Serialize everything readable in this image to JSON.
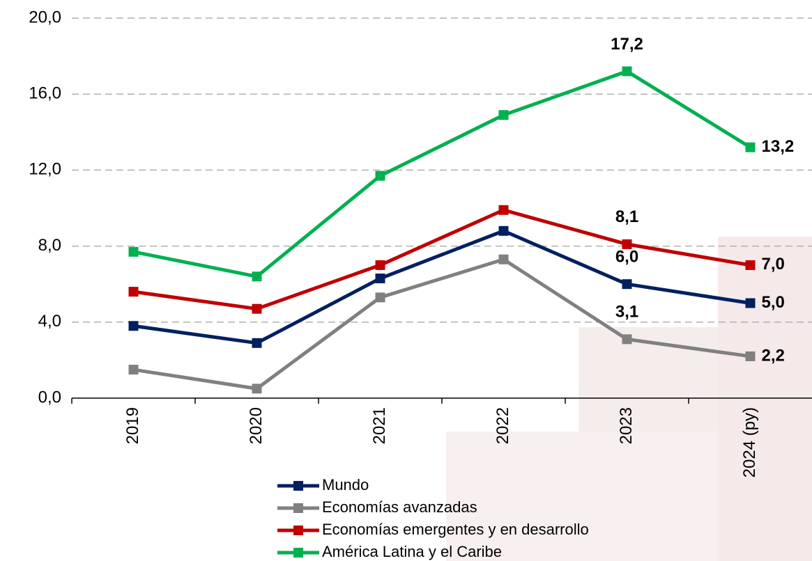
{
  "chart_data": {
    "type": "line",
    "categories": [
      "2019",
      "2020",
      "2021",
      "2022",
      "2023",
      "2024 (py)"
    ],
    "ylim": [
      0,
      20
    ],
    "yticks": [
      {
        "value": 0,
        "label": "0,0"
      },
      {
        "value": 4,
        "label": "4,0"
      },
      {
        "value": 8,
        "label": "8,0"
      },
      {
        "value": 12,
        "label": "12,0"
      },
      {
        "value": 16,
        "label": "16,0"
      },
      {
        "value": 20,
        "label": "20,0"
      }
    ],
    "grid": true,
    "series": [
      {
        "name": "Mundo",
        "color": "#002060",
        "values": [
          3.8,
          2.9,
          6.3,
          8.8,
          6.0,
          5.0
        ],
        "value_labels": [
          null,
          null,
          null,
          null,
          "6,0",
          "5,0"
        ]
      },
      {
        "name": "Economías avanzadas",
        "color": "#808080",
        "values": [
          1.5,
          0.5,
          5.3,
          7.3,
          3.1,
          2.2
        ],
        "value_labels": [
          null,
          null,
          null,
          null,
          "3,1",
          "2,2"
        ]
      },
      {
        "name": "Economías emergentes y en desarrollo",
        "color": "#c00000",
        "values": [
          5.6,
          4.7,
          7.0,
          9.9,
          8.1,
          7.0
        ],
        "value_labels": [
          null,
          null,
          null,
          null,
          "8,1",
          "7,0"
        ]
      },
      {
        "name": "América Latina y el Caribe",
        "color": "#00b050",
        "values": [
          7.7,
          6.4,
          11.7,
          14.9,
          17.2,
          13.2
        ],
        "value_labels": [
          null,
          null,
          null,
          null,
          "17,2",
          "13,2"
        ]
      }
    ]
  }
}
